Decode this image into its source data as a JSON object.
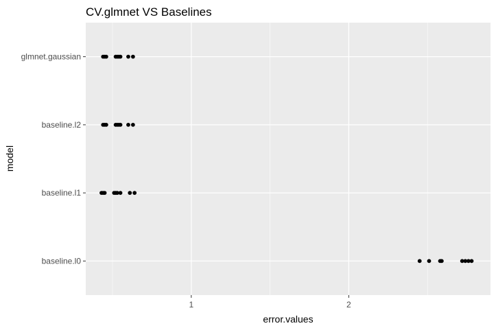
{
  "chart_data": {
    "type": "scatter",
    "title": "CV.glmnet VS Baselines",
    "xlabel": "error.values",
    "ylabel": "model",
    "xlim": [
      0.33,
      2.9
    ],
    "x_ticks": [
      1,
      2
    ],
    "x_tick_labels": [
      "1",
      "2"
    ],
    "categories": [
      "baseline.l0",
      "baseline.l1",
      "baseline.l2",
      "glmnet.gaussian"
    ],
    "grid": true,
    "panel_background": "#ebebeb",
    "grid_color": "#ffffff",
    "point_color": "#000000",
    "series": [
      {
        "category": "glmnet.gaussian",
        "values": [
          0.44,
          0.45,
          0.46,
          0.52,
          0.53,
          0.54,
          0.55,
          0.6,
          0.63
        ]
      },
      {
        "category": "baseline.l2",
        "values": [
          0.44,
          0.45,
          0.46,
          0.52,
          0.53,
          0.54,
          0.55,
          0.6,
          0.63
        ]
      },
      {
        "category": "baseline.l1",
        "values": [
          0.43,
          0.44,
          0.45,
          0.51,
          0.52,
          0.53,
          0.55,
          0.61,
          0.64
        ]
      },
      {
        "category": "baseline.l0",
        "values": [
          2.45,
          2.51,
          2.58,
          2.59,
          2.72,
          2.74,
          2.76,
          2.78
        ]
      }
    ]
  }
}
